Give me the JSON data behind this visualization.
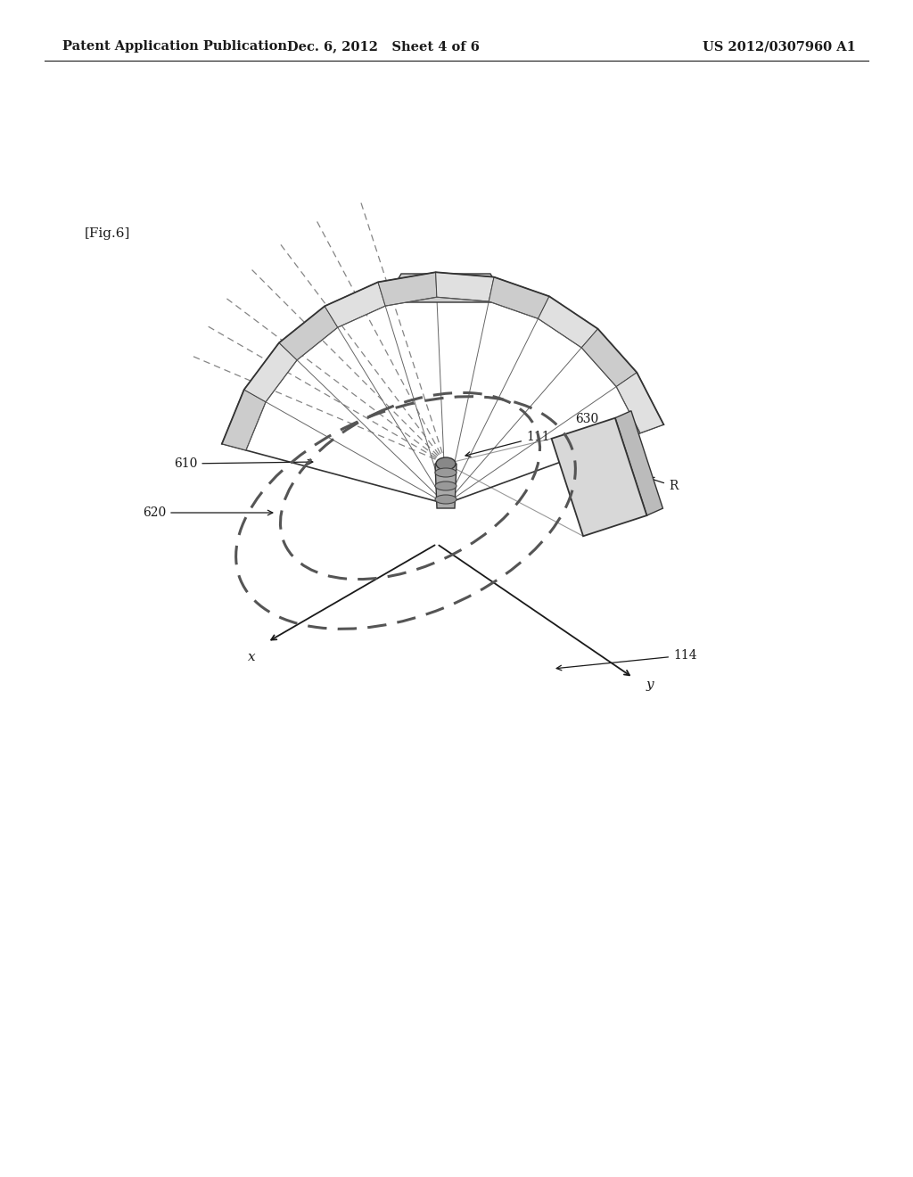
{
  "background_color": "#ffffff",
  "header_left": "Patent Application Publication",
  "header_mid": "Dec. 6, 2012   Sheet 4 of 6",
  "header_right": "US 2012/0307960 A1",
  "fig_label": "[Fig.6]",
  "header_fontsize": 10.5,
  "fig_label_fontsize": 11,
  "text_color": "#1a1a1a",
  "line_color": "#333333",
  "dashed_color": "#444444",
  "label_111": "111",
  "label_610": "610",
  "label_620": "620",
  "label_630": "630",
  "label_R": "R",
  "label_114": "114",
  "label_x": "x",
  "label_y": "y"
}
